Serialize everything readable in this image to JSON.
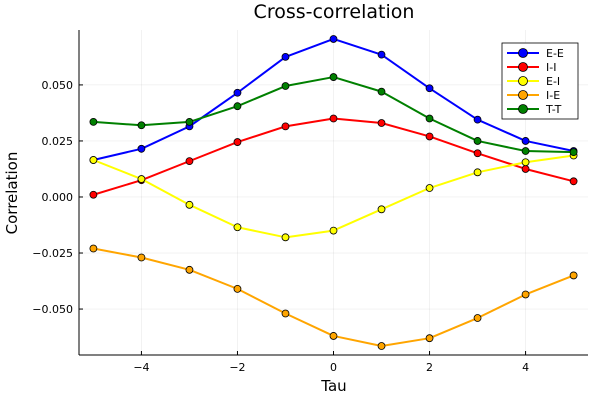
{
  "chart_data": {
    "type": "line",
    "title": "Cross-correlation",
    "xlabel": "Tau",
    "ylabel": "Correlation",
    "xlim": [
      -5.3,
      5.3
    ],
    "ylim": [
      -0.0705,
      0.0745
    ],
    "x": [
      -5,
      -4,
      -3,
      -2,
      -1,
      0,
      1,
      2,
      3,
      4,
      5
    ],
    "xticks": [
      -4,
      -2,
      0,
      2,
      4
    ],
    "xtick_labels": [
      "−4",
      "−2",
      "0",
      "2",
      "4"
    ],
    "yticks": [
      -0.05,
      -0.025,
      0.0,
      0.025,
      0.05
    ],
    "ytick_labels": [
      "−0.050",
      "−0.025",
      "0.000",
      "0.025",
      "0.050"
    ],
    "grid": true,
    "legend_position": "top-right",
    "series": [
      {
        "name": "E-E",
        "color": "#0000ff",
        "values": [
          0.0165,
          0.0215,
          0.0315,
          0.0465,
          0.0625,
          0.0705,
          0.0635,
          0.0485,
          0.0345,
          0.025,
          0.0205
        ]
      },
      {
        "name": "I-I",
        "color": "#ff0000",
        "values": [
          0.001,
          0.0075,
          0.016,
          0.0245,
          0.0315,
          0.035,
          0.033,
          0.027,
          0.0195,
          0.0125,
          0.007
        ]
      },
      {
        "name": "E-I",
        "color": "#ffff00",
        "values": [
          0.0165,
          0.008,
          -0.0035,
          -0.0135,
          -0.018,
          -0.015,
          -0.0055,
          0.004,
          0.011,
          0.0155,
          0.0185
        ]
      },
      {
        "name": "I-E",
        "color": "#ffa500",
        "values": [
          -0.023,
          -0.027,
          -0.0325,
          -0.041,
          -0.052,
          -0.062,
          -0.0665,
          -0.063,
          -0.054,
          -0.0435,
          -0.035
        ]
      },
      {
        "name": "T-T",
        "color": "#008000",
        "values": [
          0.0335,
          0.032,
          0.0335,
          0.0405,
          0.0495,
          0.0535,
          0.047,
          0.035,
          0.025,
          0.0205,
          0.02
        ]
      }
    ]
  }
}
